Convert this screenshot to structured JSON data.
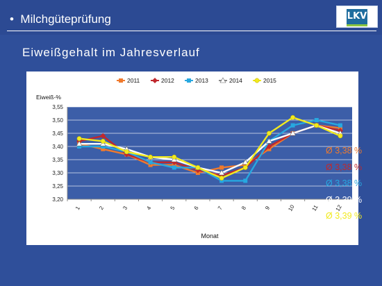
{
  "header": {
    "bullet": "•",
    "title": "Milchgüteprüfung",
    "logo_text": "LKV"
  },
  "subtitle": "Eiweißgehalt im Jahresverlauf",
  "averages": [
    {
      "label": "Ø 3,38 %",
      "color": "#f07a2d"
    },
    {
      "label": "Ø 3,38 %",
      "color": "#c0282d"
    },
    {
      "label": "Ø 3,38 %",
      "color": "#27a8e0"
    },
    {
      "label": "Ø 3,39 %",
      "color": "#ffffff"
    },
    {
      "label": "Ø 3,39 %",
      "color": "#f2ea1f"
    }
  ],
  "chart_data": {
    "type": "line",
    "title": "",
    "xlabel": "Monat",
    "ylabel": "Eiweiß-%",
    "ylim": [
      3.2,
      3.55
    ],
    "y_ticks": [
      "3,20",
      "3,25",
      "3,30",
      "3,35",
      "3,40",
      "3,45",
      "3,50",
      "3,55"
    ],
    "categories": [
      "1",
      "2",
      "3",
      "4",
      "5",
      "6",
      "7",
      "8",
      "9",
      "10",
      "11",
      "12"
    ],
    "grid": "horizontal",
    "legend": "top",
    "series": [
      {
        "name": "2011",
        "color": "#f07a2d",
        "marker": "square",
        "values": [
          3.41,
          3.39,
          3.37,
          3.33,
          3.33,
          3.3,
          3.32,
          3.33,
          3.39,
          3.45,
          3.48,
          3.47
        ]
      },
      {
        "name": "2012",
        "color": "#c0282d",
        "marker": "diamond",
        "values": [
          3.42,
          3.44,
          3.37,
          3.34,
          3.34,
          3.31,
          3.29,
          3.32,
          3.4,
          3.45,
          3.48,
          3.46
        ]
      },
      {
        "name": "2013",
        "color": "#27a8e0",
        "marker": "square",
        "values": [
          3.4,
          3.4,
          3.38,
          3.34,
          3.32,
          3.32,
          3.27,
          3.27,
          3.42,
          3.48,
          3.5,
          3.48
        ]
      },
      {
        "name": "2014",
        "color": "#ffffff",
        "marker": "triangle",
        "values": [
          3.41,
          3.41,
          3.39,
          3.36,
          3.35,
          3.32,
          3.3,
          3.34,
          3.42,
          3.45,
          3.48,
          3.45
        ]
      },
      {
        "name": "2015",
        "color": "#f2ea1f",
        "marker": "circle",
        "values": [
          3.43,
          3.42,
          3.38,
          3.36,
          3.36,
          3.32,
          3.28,
          3.32,
          3.45,
          3.51,
          3.48,
          3.44
        ]
      }
    ]
  }
}
